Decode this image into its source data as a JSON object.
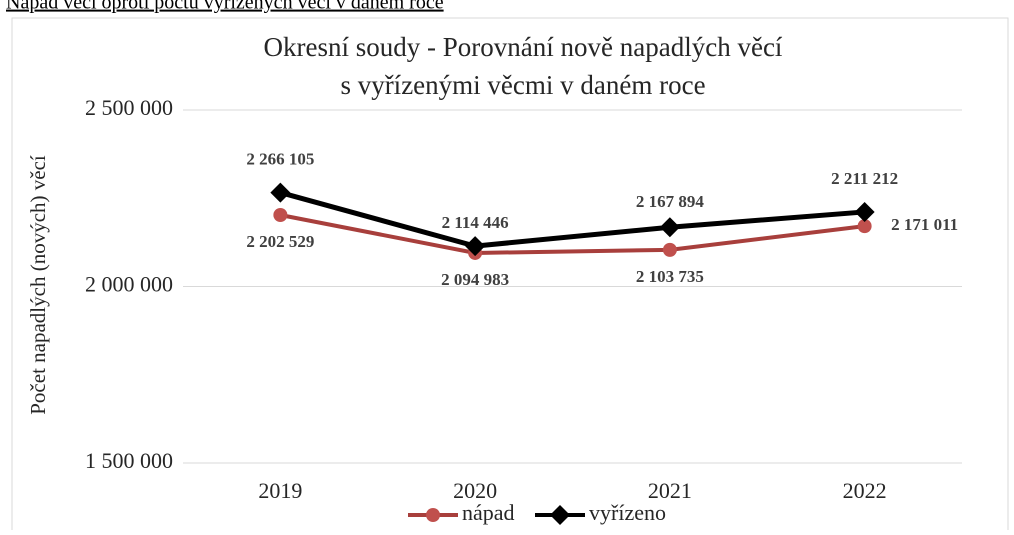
{
  "caption": "Nápad věcí oproti počtu vyřízených věcí v daném roce",
  "chart_data": {
    "type": "line",
    "title": [
      "Okresní soudy - Porovnání nově napadlých věcí",
      "s vyřízenými věcmi v daném roce"
    ],
    "y_label": "Počet napadlých (nových) věcí",
    "categories": [
      "2019",
      "2020",
      "2021",
      "2022"
    ],
    "series": [
      {
        "name": "nápad",
        "color": "#c0504d",
        "line_color": "#a83f3c",
        "marker": "circle",
        "values": [
          2202529,
          2094983,
          2103735,
          2171011
        ],
        "value_labels": [
          "2 202 529",
          "2 094 983",
          "2 103 735",
          "2 171 011"
        ]
      },
      {
        "name": "vyřízeno",
        "color": "#000000",
        "line_color": "#000000",
        "marker": "diamond",
        "values": [
          2266105,
          2114446,
          2167894,
          2211212
        ],
        "value_labels": [
          "2 266 105",
          "2 114 446",
          "2 167 894",
          "2 211 212"
        ]
      }
    ],
    "ylim": [
      1500000,
      2500000
    ],
    "yticks": [
      {
        "value": 1500000,
        "label": "1 500 000"
      },
      {
        "value": 2000000,
        "label": "2 000 000"
      },
      {
        "value": 2500000,
        "label": "2 500 000"
      }
    ],
    "grid": true,
    "legend": "bottom"
  }
}
